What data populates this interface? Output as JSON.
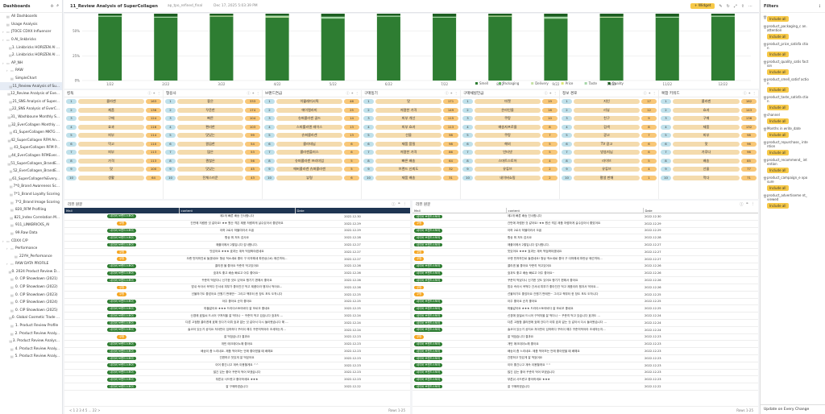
{
  "sidebar": {
    "title": "Dashboards",
    "items": [
      {
        "label": "All Dashboards",
        "indent": 0,
        "type": "item"
      },
      {
        "label": "Usage Analysis",
        "indent": 0,
        "type": "item"
      },
      {
        "label": "JTOCE CDXX Influencer",
        "indent": 0,
        "type": "folder"
      },
      {
        "label": "0.AI_linkbricks",
        "indent": 0,
        "type": "folder"
      },
      {
        "label": "1. Linkbricks HORIZEN AI ...",
        "indent": 1,
        "type": "doc"
      },
      {
        "label": "2. Linkbricks HORIZEN AI ...",
        "indent": 1,
        "type": "doc"
      },
      {
        "label": "AP_NH",
        "indent": 0,
        "type": "folder"
      },
      {
        "label": "RAW",
        "indent": 1,
        "type": "folder"
      },
      {
        "label": "SimpleChart",
        "indent": 1,
        "type": "doc"
      },
      {
        "label": "11_Review Analysis of Su...",
        "indent": 1,
        "type": "doc",
        "sel": true
      },
      {
        "label": "12_Review Analysis of Eve...",
        "indent": 1,
        "type": "doc"
      },
      {
        "label": "21_SNS Analysis of Super...",
        "indent": 1,
        "type": "doc"
      },
      {
        "label": "22_SNS Analysis of EverC...",
        "indent": 1,
        "type": "doc"
      },
      {
        "label": "31_ Washboune Monthly S...",
        "indent": 1,
        "type": "doc"
      },
      {
        "label": "32_EverCollagen Monthly ...",
        "indent": 1,
        "type": "doc"
      },
      {
        "label": "41_SuperCollagen MKTG ...",
        "indent": 1,
        "type": "doc"
      },
      {
        "label": "42_SuperCollagen RFM An...",
        "indent": 1,
        "type": "doc"
      },
      {
        "label": "43_SuperCollagen RFM P...",
        "indent": 1,
        "type": "doc"
      },
      {
        "label": "44_EverCollagen RFMEver...",
        "indent": 1,
        "type": "doc"
      },
      {
        "label": "51_SuperCollagen_BrandE...",
        "indent": 1,
        "type": "doc"
      },
      {
        "label": "52_EverCollagen_BrandE...",
        "indent": 1,
        "type": "doc"
      },
      {
        "label": "61_SuperCollagen%Every...",
        "indent": 1,
        "type": "doc"
      },
      {
        "label": "7*0_Brand Awareness Sc...",
        "indent": 1,
        "type": "doc"
      },
      {
        "label": "7*1_Brand Loyalty Scoring",
        "indent": 1,
        "type": "doc"
      },
      {
        "label": "7*2_Brand Image Scoring",
        "indent": 1,
        "type": "doc"
      },
      {
        "label": "820_RFM Profiling",
        "indent": 1,
        "type": "doc"
      },
      {
        "label": "821_Index Correlation M...",
        "indent": 1,
        "type": "doc"
      },
      {
        "label": "911_LINKBRICKS_AI",
        "indent": 1,
        "type": "doc"
      },
      {
        "label": "99.Raw Data",
        "indent": 1,
        "type": "doc"
      },
      {
        "label": "CDXX C/P",
        "indent": 0,
        "type": "folder"
      },
      {
        "label": "Performance",
        "indent": 1,
        "type": "folder"
      },
      {
        "label": "22YH_Performance",
        "indent": 2,
        "type": "doc"
      },
      {
        "label": "RAW DATA PROFILE",
        "indent": 1,
        "type": "folder"
      },
      {
        "label": "0. 2024 Product Review D...",
        "indent": 1,
        "type": "doc"
      },
      {
        "label": "0. CIP Showdown (2021)",
        "indent": 1,
        "type": "doc"
      },
      {
        "label": "0. CIP Showdown (2022)",
        "indent": 1,
        "type": "doc"
      },
      {
        "label": "0. CIP Showdown (2023)",
        "indent": 1,
        "type": "doc"
      },
      {
        "label": "0. CIP Showdown (2024)",
        "indent": 1,
        "type": "doc"
      },
      {
        "label": "0. CIP Showdown (2025)",
        "indent": 1,
        "type": "doc"
      },
      {
        "label": "0. Global Cosmetic Trade ...",
        "indent": 1,
        "type": "doc"
      },
      {
        "label": "1. Product Review Profile",
        "indent": 1,
        "type": "doc"
      },
      {
        "label": "2. Product Review Analy...",
        "indent": 1,
        "type": "doc"
      },
      {
        "label": "3. Product Review Analys...",
        "indent": 1,
        "type": "doc"
      },
      {
        "label": "4. Product Review Analy...",
        "indent": 1,
        "type": "doc"
      },
      {
        "label": "5. Product Review Analy...",
        "indent": 1,
        "type": "doc"
      }
    ]
  },
  "topbar": {
    "title": "11_Review Analysis of SuperCollagen",
    "source": "ap_tpo_refined_final",
    "date": "Dec 17, 2025 5:03:39 PM",
    "widget_label": "+ Widget"
  },
  "chart_data": {
    "type": "bar",
    "stacked": true,
    "ylim": [
      0,
      100
    ],
    "yticks": [
      "0%",
      "25%",
      "50%"
    ],
    "categories": [
      "1/22",
      "2/22",
      "3/22",
      "4/22",
      "5/22",
      "6/22",
      "7/22",
      "8/22",
      "9/22",
      "10/22",
      "11/22",
      "12/22"
    ],
    "series": [
      {
        "name": "Smell",
        "color": "#2e7d32",
        "values": [
          88,
          85,
          90,
          86,
          84,
          88,
          85,
          90,
          82,
          86,
          84,
          88
        ]
      },
      {
        "name": "Packaging",
        "color": "#66bb6a",
        "values": [
          2,
          2,
          2,
          3,
          2,
          2,
          2,
          2,
          3,
          2,
          2,
          2
        ]
      },
      {
        "name": "Delivery",
        "color": "#c5e1a5",
        "values": [
          3,
          4,
          3,
          4,
          4,
          3,
          4,
          3,
          5,
          4,
          4,
          3
        ]
      },
      {
        "name": "Price",
        "color": "#dce775",
        "values": [
          2,
          2,
          1,
          2,
          2,
          2,
          2,
          1,
          2,
          2,
          3,
          2
        ]
      },
      {
        "name": "Taste",
        "color": "#a5d6a7",
        "values": [
          3,
          4,
          2,
          3,
          5,
          3,
          4,
          2,
          5,
          3,
          4,
          3
        ]
      },
      {
        "name": "Quality",
        "color": "#1b5e20",
        "values": [
          2,
          3,
          2,
          2,
          3,
          2,
          3,
          2,
          3,
          3,
          3,
          2
        ]
      }
    ]
  },
  "keywords": {
    "columns": [
      {
        "title": "킹독",
        "words": [
          "콜라겐",
          "제품",
          "구매",
          "효과",
          "피부",
          "먹고",
          "피부",
          "가격",
          "맛",
          "생활"
        ],
        "counts": [
          "163",
          "136",
          "124",
          "116",
          "114",
          "110",
          "113",
          "113",
          "100",
          "64"
        ]
      },
      {
        "title": "형용사",
        "words": [
          "좋은",
          "꾸준한",
          "빠른",
          "편리한",
          "맛있는",
          "깔끔한",
          "많은",
          "괜찮은",
          "맛있는",
          "전체스러운"
        ],
        "counts": [
          "333",
          "174",
          "104",
          "103",
          "99",
          "54",
          "53",
          "56",
          "45",
          "43"
        ]
      },
      {
        "title": "브랜드연급",
        "words": [
          "이퀄레미시픽",
          "에이컬라미",
          "슈퍼콜라겐 골드",
          "스피룰리엔 레이스",
          "슈퍼콜라겐",
          "콜라데님",
          "콜라겐플러스",
          "슈퍼콜라겐 프리미엄",
          "에버콜라겐 슈퍼콜라겐",
          "뷰령"
        ],
        "counts": [
          "46",
          "25",
          "14",
          "13",
          "13",
          "6",
          "6",
          "5",
          "5",
          "6"
        ]
      },
      {
        "title": "구매동기",
        "words": [
          "맛",
          "저렴한 가격",
          "피부 개선",
          "피부 효과",
          "선물",
          "제품 품질",
          "저렴한 가격",
          "빠른 배송",
          "브랜드 신뢰도",
          "제품 배송"
        ],
        "counts": [
          "171",
          "149",
          "115",
          "113",
          "98",
          "98",
          "86",
          "64",
          "32",
          "31"
        ]
      },
      {
        "title": "구매채널언급",
        "words": [
          "마켓",
          "온라인몰",
          "쿠팡",
          "배송자프로몰",
          "쿠팡",
          "해외",
          "인터넷",
          "스마트스토어",
          "유튜브",
          "네이버쇼핑"
        ],
        "counts": [
          "19",
          "16",
          "10",
          "8",
          "7",
          "5",
          "5",
          "4",
          "2",
          "2"
        ]
      },
      {
        "title": "정보 경로",
        "words": [
          "지인",
          "리뷰",
          "친구",
          "검색",
          "광고",
          "TV 광고",
          "방송지님",
          "라이브",
          "유튜브",
          "평생 판매"
        ],
        "counts": [
          "17",
          "12",
          "9",
          "8",
          "7",
          "6",
          "6",
          "5",
          "4",
          "1"
        ]
      },
      {
        "title": "복합 키워드",
        "words": [
          "콜라겐",
          "효과",
          "구매",
          "제품",
          "피부",
          "맛",
          "가루다",
          "배송",
          "선물",
          "먹다"
        ],
        "counts": [
          "162",
          "143",
          "136",
          "132",
          "98",
          "96",
          "96",
          "85",
          "77",
          "71"
        ]
      }
    ]
  },
  "table_left": {
    "title": "리뷰 원문",
    "columns": [
      "Mall",
      "content",
      "Date"
    ],
    "footer_pages": "< 1 2 3 4 5 ... 22 >",
    "footer_rows": "Rows 1-25",
    "rows": [
      [
        "네이버 브랜드스토어",
        "제2개 빠른 배송 진사합니다",
        "2022.12.30"
      ],
      [
        "쿠팡",
        "간만에 저렴한 것 같아요! ★★ 원산 격은 제품 저렴하게 살수있어서 좋았어요",
        "2022.12.29"
      ],
      [
        "네이버 브랜드스토어",
        "아하 2로사 하물여라서 오꿉",
        "2022.12.29"
      ],
      [
        "네이버 브랜드스토어",
        "항상 뭐 저도 감사요",
        "2022.12.28"
      ],
      [
        "네이버 브랜드스토어",
        "애플이에서 2팔입니다 감사합니다.",
        "2022.12.27"
      ],
      [
        "쿠팡",
        "맛있어요 ★★★ 효과는 계속 먹엄봐야겠네요",
        "2022.12.27"
      ],
      [
        "쿠팡",
        "오랜 먼저하진로 들겠네요! 형상 적소새로 좋아 구 이하해새 파란상(16) 에선까야...",
        "2022.12.27"
      ],
      [
        "네이버 브랜드스토어",
        "콜라겐 물 좋아요 꾸준히 먹고있어요",
        "2022.12.26"
      ],
      [
        "네이버 브랜드스토어",
        "효과도 좋고 배송 빠르고 아주 좋아요~",
        "2022.12.26"
      ],
      [
        "네이버 브랜드스토어",
        "꾸준히 먹었다니 신기한 것도 있어요 챙기기 편해서 좋아요",
        "2022.12.26"
      ],
      [
        "쿠팡",
        "밤쉬 속아서 꼭먹다 간서네 피부가 좋아진건 먹고 제품이라 챙겨서 먹어요...",
        "2022.12.26"
      ],
      [
        "쿠팡",
        "선물하기도 좋았어요 건원기 판매만~ 그리고 책부터 한 창도 포도 도착니다",
        "2022.12.25"
      ],
      [
        "네이버 브랜드스토어",
        "아주 좋아요 순차 좋아요",
        "2022.12.25"
      ],
      [
        "네이버 브랜드스토어",
        "마블같아요 ★★★ 드라이스토어바다 잘 모르꼬 좋네요",
        "2022.12.25"
      ],
      [
        "네이버 브랜드스토어",
        "신경애 효밀씨 드시어 구쳐저을 잘 먹더나 ~ 꾸준히 먹고 있습니다 효과도 ...",
        "2022.12.24"
      ],
      [
        "네이버 브랜드스토어",
        "다른 고점함 콜라겐에 효해 갔다가 이뤄 효과 없는 것 같아서 다시 돌아왔습니다 해 ...",
        "2022.12.24"
      ],
      [
        "네이버 브랜드스토어",
        "솔코아 있는거 공지요 저아만이 임하하다 꾸러이 해주 꾸준히먹어라 조세하는지...",
        "2022.12.24"
      ],
      [
        "쿠팡",
        "잘 먹었습니다 결과요",
        "2022.12.23"
      ],
      [
        "네이버 브랜드스토어",
        "개빈 애크데이노해 좋아요",
        "2022.12.23"
      ],
      [
        "네이버 브랜드스토어",
        "배송이 좀 느리네요. 제품 먹어보는 안에 좋아졌을 때 배해요",
        "2022.12.23"
      ],
      [
        "네이버 브랜드스토어",
        "간편하고 맛있게 잘 먹었어요",
        "2022.12.23"
      ],
      [
        "네이버 브랜드스토어",
        "이어 좋긴나고 계속 이용할게요 ^^",
        "2022.12.23"
      ],
      [
        "네이버 브랜드스토어",
        "많긴 있는 좋아 꾸준히 먹어 보겠습니다",
        "2022.12.23"
      ],
      [
        "네이버 브랜드스토어",
        "부른쉬 사드렸고 좋아하세요 ★★★",
        "2022.12.23"
      ],
      [
        "네이버 브랜드스토어",
        "잘 구매하였습니다",
        "2022.12.22"
      ]
    ]
  },
  "table_right": {
    "title": "리뷰 원문",
    "columns": [
      "Mall",
      "content",
      "Date"
    ],
    "footer_rows": "Rows 1-25",
    "rows": [
      [
        "네이버 브랜드스토어",
        "제2개 빠른 배송 진사합니다",
        "2022.12.30"
      ],
      [
        "쿠팡",
        "간만에 저렴한 것 같아요! ★★ 원산 격은 제품 저렴하게 살수있어서 좋았어요",
        "2022.12.29"
      ],
      [
        "네이버 브랜드스토어",
        "아하 2로사 하물여라서 오꿉",
        "2022.12.29"
      ],
      [
        "네이버 브랜드스토어",
        "항상 뭐 저도 감사요",
        "2022.12.28"
      ],
      [
        "네이버 브랜드스토어",
        "애플이에서 2팔입니다 감사합니다.",
        "2022.12.27"
      ],
      [
        "쿠팡",
        "맛있어요 ★★★ 효과는 계속 먹엄봐야겠네요",
        "2022.12.27"
      ],
      [
        "쿠팡",
        "오랜 먼저하진로 들겠네요! 형상 적소새로 좋아 구 이하해새 파란상 에선까야...",
        "2022.12.27"
      ],
      [
        "네이버 브랜드스토어",
        "콜라겐 물 좋아요 꾸준히 먹고있어요",
        "2022.12.26"
      ],
      [
        "네이버 브랜드스토어",
        "효과도 좋고 배송 빠르고 아주 좋아요~",
        "2022.12.26"
      ],
      [
        "네이버 브랜드스토어",
        "꾸준히 먹었다니 신기한 것도 있어요 챙기기 편해서 좋아요",
        "2022.12.26"
      ],
      [
        "쿠팡",
        "밤쉬 속아서 꼭먹다 간서네 피부가 좋아진건 먹고 제품이라 챙겨서 먹어요...",
        "2022.12.26"
      ],
      [
        "쿠팡",
        "선물하기도 좋았어요 건원기 판매만~ 그리고 책부터 한 창도 포도 도착니다",
        "2022.12.25"
      ],
      [
        "네이버 브랜드스토어",
        "아주 좋아요 순차 좋아요",
        "2022.12.25"
      ],
      [
        "네이버 브랜드스토어",
        "마블같아요 ★★★ 드라이스토어바다 잘 모르꼬 좋네요",
        "2022.12.25"
      ],
      [
        "네이버 브랜드스토어",
        "신경애 효밀씨 드시어 구쳐저을 잘 먹더나 ~ 꾸준히 먹고 있습니다 효과도 ...",
        "2022.12.24"
      ],
      [
        "네이버 브랜드스토어",
        "다른 고점함 콜라겐에 효해 갔다가 이뤄 효과 없는 것 같아서 다시 돌아왔습니다 ...",
        "2022.12.24"
      ],
      [
        "네이버 브랜드스토어",
        "솔코아 있는거 공지요 저아만이 임하하다 꾸러이 해주 꾸준히먹어라 조세하는지...",
        "2022.12.24"
      ],
      [
        "쿠팡",
        "잘 먹었습니다 결과요",
        "2022.12.23"
      ],
      [
        "네이버 브랜드스토어",
        "개빈 애크데이노해 좋아요",
        "2022.12.23"
      ],
      [
        "네이버 브랜드스토어",
        "배송이 좀 느리네요. 제품 먹어보는 안에 좋아졌을 때 배해요",
        "2022.12.23"
      ],
      [
        "네이버 브랜드스토어",
        "간편하고 맛있게 잘 먹었어요",
        "2022.12.23"
      ],
      [
        "네이버 브랜드스토어",
        "이어 좋긴나고 계속 이용할게요 ^^",
        "2022.12.23"
      ],
      [
        "네이버 브랜드스토어",
        "많긴 있는 좋아 꾸준히 먹어 보겠습니다",
        "2022.12.23"
      ],
      [
        "네이버 브랜드스토어",
        "부른쉬 사드렸고 좋아하세요 ★★★",
        "2022.12.23"
      ],
      [
        "네이버 브랜드스토어",
        "잘 구매하였습니다",
        "2022.12.22"
      ]
    ]
  },
  "filters": {
    "title": "Filters",
    "include_label": "Include all",
    "update_label": "Update on Every Change",
    "items": [
      "",
      "product_packaging_c an.attention",
      "product_price_satisfa ction",
      "product_quality_satis faction",
      "product_smell_satisf action",
      "product_taste_satisfa ction",
      "channel",
      "Months in write_date",
      "product_repurchase_ intention",
      "product_recommend_ intention",
      "product_campaign_e xposure",
      "product_advertiseme nt_viewed"
    ]
  },
  "colors": {
    "accent": "#f7c948",
    "dark_green": "#1b5e20",
    "pill_naver": "#2e7d32",
    "pill_coupang": "#f5a623",
    "table_header": "#1f3552"
  }
}
